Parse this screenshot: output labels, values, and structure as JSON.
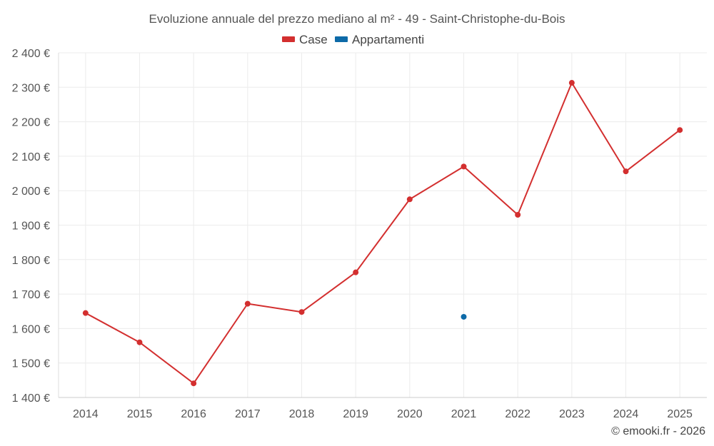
{
  "chart_data": {
    "type": "line",
    "title": "Evoluzione annuale del prezzo mediano al m² - 49 - Saint-Christophe-du-Bois",
    "x": [
      "2014",
      "2015",
      "2016",
      "2017",
      "2018",
      "2019",
      "2020",
      "2021",
      "2022",
      "2023",
      "2024",
      "2025"
    ],
    "xlabel": "",
    "ylabel": "",
    "ylim": [
      1400,
      2400
    ],
    "yticks": [
      1400,
      1500,
      1600,
      1700,
      1800,
      1900,
      2000,
      2100,
      2200,
      2300,
      2400
    ],
    "ytick_labels": [
      "1 400 €",
      "1 500 €",
      "1 600 €",
      "1 700 €",
      "1 800 €",
      "1 900 €",
      "2 000 €",
      "2 100 €",
      "2 200 €",
      "2 300 €",
      "2 400 €"
    ],
    "grid": true,
    "legend_position": "top-center",
    "series": [
      {
        "name": "Case",
        "color": "#d32f2f",
        "values": [
          1645,
          1560,
          1441,
          1672,
          1648,
          1763,
          1975,
          2070,
          1930,
          2313,
          2056,
          2176
        ]
      },
      {
        "name": "Appartamenti",
        "color": "#0d6aa8",
        "values": [
          null,
          null,
          null,
          null,
          null,
          null,
          null,
          1634,
          null,
          null,
          null,
          null
        ]
      }
    ]
  },
  "credit": "© emooki.fr - 2026"
}
